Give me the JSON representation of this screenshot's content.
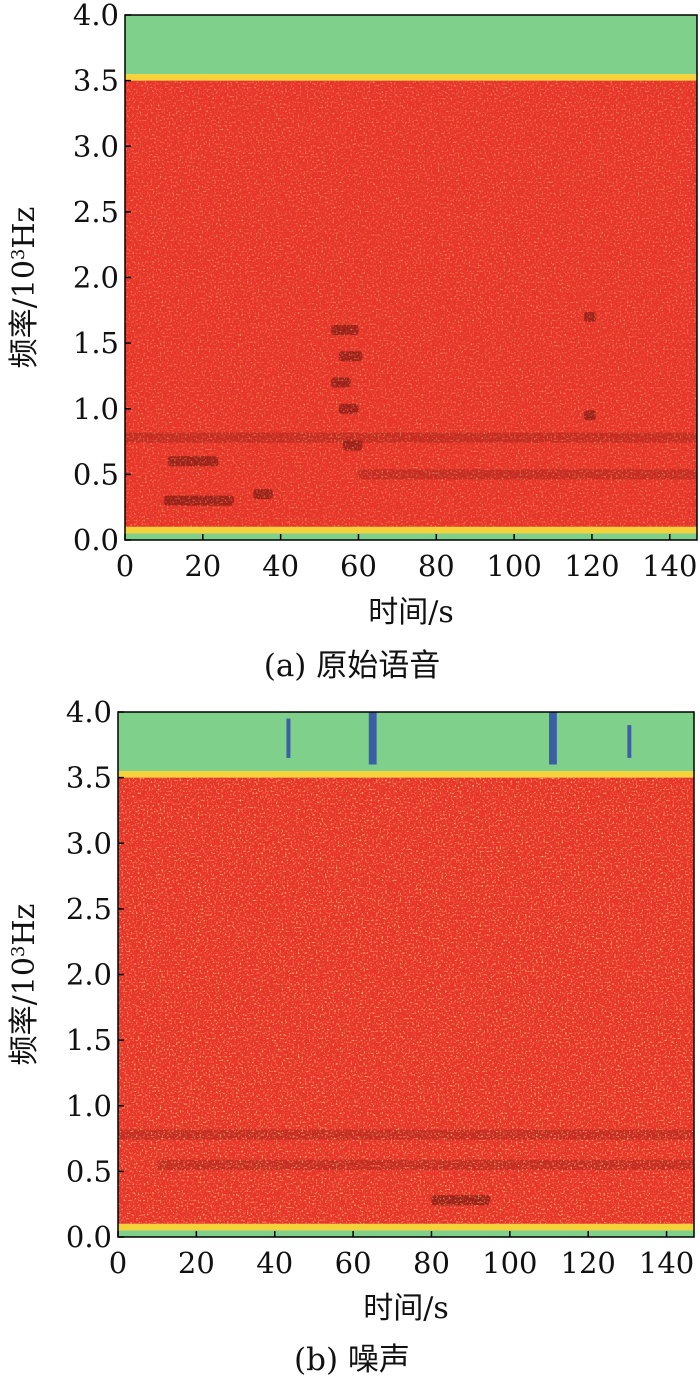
{
  "chart_data": [
    {
      "type": "heatmap",
      "panel_label": "(a) 原始语音",
      "xlabel": "时间/s",
      "ylabel": "频率/10³Hz",
      "ylabel_parts": {
        "main": "频率/10",
        "sup": "3",
        "unit": "Hz"
      },
      "xlim": [
        0,
        147
      ],
      "ylim": [
        0.0,
        4.0
      ],
      "x_ticks": [
        0,
        20,
        40,
        60,
        80,
        100,
        120,
        140
      ],
      "x_tick_labels": [
        "0",
        "20",
        "40",
        "60",
        "80",
        "100",
        "120",
        "140"
      ],
      "y_ticks": [
        0.0,
        0.5,
        1.0,
        1.5,
        2.0,
        2.5,
        3.0,
        3.5,
        4.0
      ],
      "y_tick_labels": [
        "0.0",
        "0.5",
        "1.0",
        "1.5",
        "2.0",
        "2.5",
        "3.0",
        "3.5",
        "4.0"
      ],
      "colors": {
        "high": "#e8352a",
        "mid": "#f5d23a",
        "low": "#7fd08a",
        "lowest": "#2f4aa8"
      },
      "bands": [
        {
          "f0": 3.55,
          "f1": 4.0,
          "level": "low"
        },
        {
          "f0": 3.5,
          "f1": 3.55,
          "level": "mid"
        },
        {
          "f0": 0.1,
          "f1": 3.5,
          "level": "high"
        },
        {
          "f0": 0.05,
          "f1": 0.1,
          "level": "mid"
        },
        {
          "f0": 0.0,
          "f1": 0.05,
          "level": "low"
        }
      ],
      "dark_features": [
        {
          "t0": 10,
          "t1": 28,
          "f": 0.3
        },
        {
          "t0": 33,
          "t1": 38,
          "f": 0.35
        },
        {
          "t0": 11,
          "t1": 24,
          "f": 0.6
        },
        {
          "t0": 53,
          "t1": 60,
          "f": 1.6
        },
        {
          "t0": 55,
          "t1": 61,
          "f": 1.4
        },
        {
          "t0": 53,
          "t1": 58,
          "f": 1.2
        },
        {
          "t0": 55,
          "t1": 60,
          "f": 1.0
        },
        {
          "t0": 56,
          "t1": 61,
          "f": 0.72
        },
        {
          "t0": 118,
          "t1": 121,
          "f": 1.7
        },
        {
          "t0": 118,
          "t1": 121,
          "f": 0.95
        },
        {
          "t0": 0,
          "t1": 147,
          "f": 0.78
        },
        {
          "t0": 60,
          "t1": 147,
          "f": 0.5
        }
      ]
    },
    {
      "type": "heatmap",
      "panel_label": "(b) 噪声",
      "xlabel": "时间/s",
      "ylabel": "频率/10³Hz",
      "ylabel_parts": {
        "main": "频率/10",
        "sup": "3",
        "unit": "Hz"
      },
      "xlim": [
        0,
        147
      ],
      "ylim": [
        0.0,
        4.0
      ],
      "x_ticks": [
        0,
        20,
        40,
        60,
        80,
        100,
        120,
        140
      ],
      "x_tick_labels": [
        "0",
        "20",
        "40",
        "60",
        "80",
        "100",
        "120",
        "140"
      ],
      "y_ticks": [
        0.0,
        0.5,
        1.0,
        1.5,
        2.0,
        2.5,
        3.0,
        3.5,
        4.0
      ],
      "y_tick_labels": [
        "0.0",
        "0.5",
        "1.0",
        "1.5",
        "2.0",
        "2.5",
        "3.0",
        "3.5",
        "4.0"
      ],
      "colors": {
        "high": "#e8352a",
        "mid": "#f5d23a",
        "low": "#7fd08a",
        "lowest": "#2f4aa8"
      },
      "bands": [
        {
          "f0": 3.55,
          "f1": 4.0,
          "level": "low"
        },
        {
          "f0": 3.5,
          "f1": 3.55,
          "level": "mid"
        },
        {
          "f0": 0.1,
          "f1": 3.5,
          "level": "high"
        },
        {
          "f0": 0.05,
          "f1": 0.1,
          "level": "mid"
        },
        {
          "f0": 0.0,
          "f1": 0.05,
          "level": "low"
        }
      ],
      "dark_features": [
        {
          "t0": 0,
          "t1": 147,
          "f": 0.78
        },
        {
          "t0": 10,
          "t1": 147,
          "f": 0.55
        },
        {
          "t0": 80,
          "t1": 95,
          "f": 0.28
        }
      ],
      "blue_streaks": [
        {
          "t0": 64,
          "t1": 66,
          "f0": 3.6,
          "f1": 4.0
        },
        {
          "t0": 110,
          "t1": 112,
          "f0": 3.6,
          "f1": 4.0
        },
        {
          "t0": 43,
          "t1": 44,
          "f0": 3.65,
          "f1": 3.95
        },
        {
          "t0": 130,
          "t1": 131,
          "f0": 3.65,
          "f1": 3.9
        }
      ]
    }
  ]
}
